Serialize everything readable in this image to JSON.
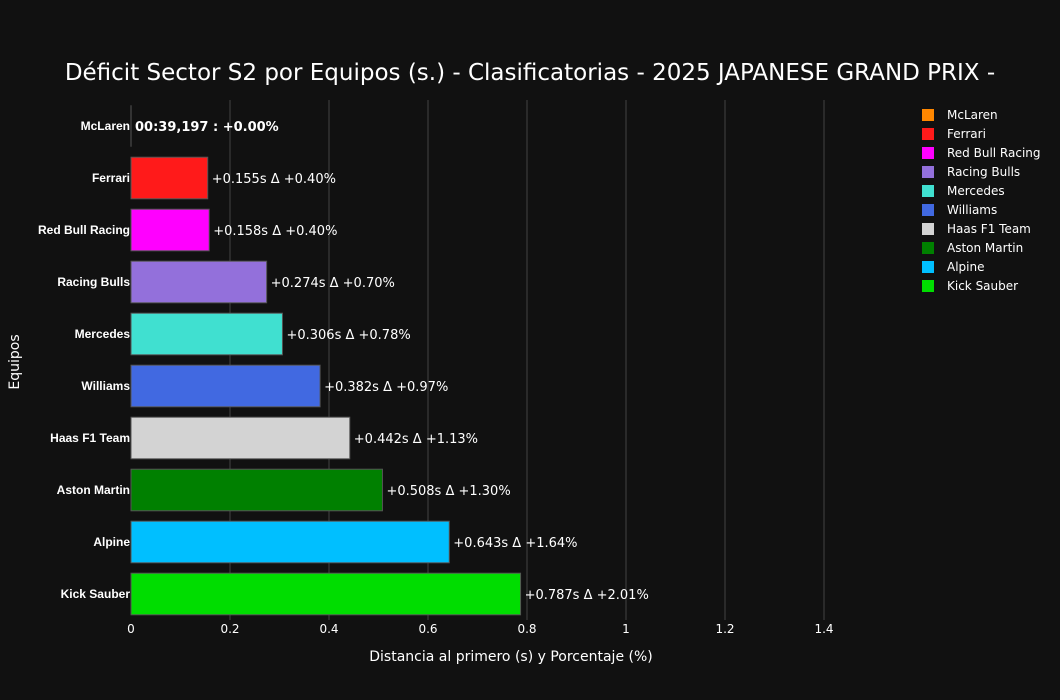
{
  "chart_data": {
    "type": "bar",
    "orientation": "horizontal",
    "title": "Déficit Sector S2 por Equipos (s.) - Clasificatorias - 2025 JAPANESE GRAND PRIX -",
    "xlabel": "Distancia al primero (s) y Porcentaje (%)",
    "ylabel": "Equipos",
    "xlim": [
      0,
      1.4
    ],
    "xticks": [
      0,
      0.2,
      0.4,
      0.6,
      0.8,
      1,
      1.2,
      1.4
    ],
    "xtick_labels": [
      "0",
      "0.2",
      "0.4",
      "0.6",
      "0.8",
      "1",
      "1.2",
      "1.4"
    ],
    "grid": true,
    "legend_position": "top-right",
    "categories": [
      "McLaren",
      "Ferrari",
      "Red Bull Racing",
      "Racing Bulls",
      "Mercedes",
      "Williams",
      "Haas F1 Team",
      "Aston Martin",
      "Alpine",
      "Kick Sauber"
    ],
    "values": [
      0,
      0.155,
      0.158,
      0.274,
      0.306,
      0.382,
      0.442,
      0.508,
      0.643,
      0.787
    ],
    "colors": [
      "#FF8700",
      "#FF1A1A",
      "#FF00FF",
      "#9370DB",
      "#40E0D0",
      "#4169E1",
      "#D3D3D3",
      "#008000",
      "#00BFFF",
      "#00DD00"
    ],
    "labels": [
      "00:39,197 : +0.00%",
      "+0.155s   Δ +0.40%",
      "+0.158s   Δ +0.40%",
      "+0.274s   Δ +0.70%",
      "+0.306s   Δ +0.78%",
      "+0.382s   Δ +0.97%",
      "+0.442s   Δ +1.13%",
      "+0.508s   Δ +1.30%",
      "+0.643s   Δ +1.64%",
      "+0.787s   Δ +2.01%"
    ],
    "legend": [
      "McLaren",
      "Ferrari",
      "Red Bull Racing",
      "Racing Bulls",
      "Mercedes",
      "Williams",
      "Haas F1 Team",
      "Aston Martin",
      "Alpine",
      "Kick Sauber"
    ]
  }
}
